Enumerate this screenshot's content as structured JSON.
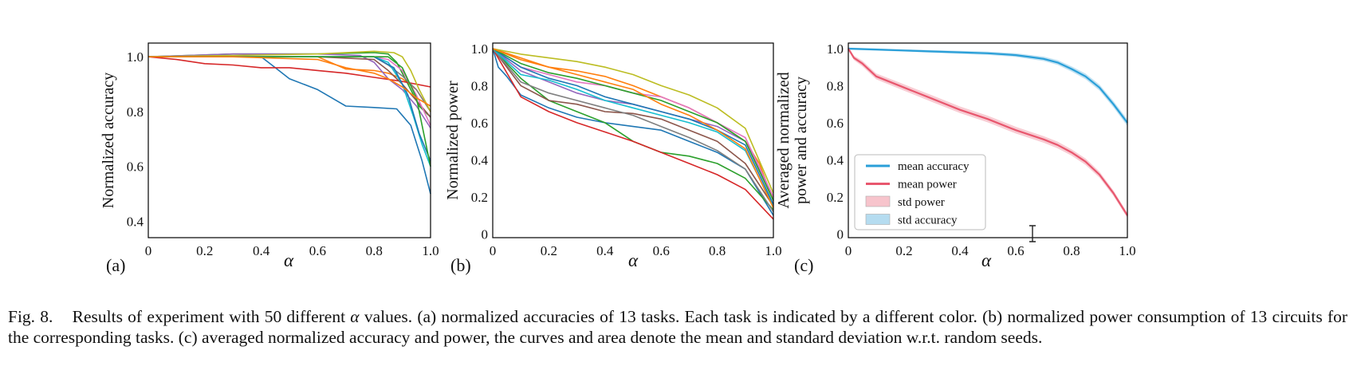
{
  "figure": {
    "caption_label": "Fig. 8.",
    "caption_lead": "Results of experiment with 50 different",
    "caption_symbol": "α",
    "caption_body": "values. (a) normalized accuracies of 13 tasks. Each task is indicated by a different color. (b) normalized power consumption of 13 circuits for the corresponding tasks. (c) averaged normalized accuracy and power, the curves and area denote the mean and standard deviation w.r.t. random seeds."
  },
  "colors": {
    "series": [
      "#1f77b4",
      "#ff7f0e",
      "#2ca02c",
      "#d62728",
      "#9467bd",
      "#8c564b",
      "#e377c2",
      "#7f7f7f",
      "#bcbd22",
      "#17becf",
      "#1f77b4",
      "#2ca02c",
      "#ff7f0e"
    ],
    "mean_accuracy": "#2a9fd8",
    "mean_power": "#e8576e",
    "std_power": "#f7c4cc",
    "std_accuracy": "#b5dcf0"
  },
  "chart_data": [
    {
      "panel_label": "(a)",
      "type": "line",
      "xlabel": "α",
      "ylabel": "Normalized accuracy",
      "xlim": [
        0,
        1
      ],
      "ylim": [
        0.34,
        1.05
      ],
      "xticks": [
        0,
        0.2,
        0.4,
        0.6,
        0.8,
        1.0
      ],
      "xtick_labels": [
        "0",
        "0.2",
        "0.4",
        "0.6",
        "0.8",
        "1.0"
      ],
      "yticks": [
        0.4,
        0.6,
        0.8,
        1.0
      ],
      "ytick_labels": [
        "0.4",
        "0.6",
        "0.8",
        "1.0"
      ],
      "grid": false,
      "series": [
        {
          "x": [
            0,
            0.3,
            0.4,
            0.45,
            0.5,
            0.6,
            0.7,
            0.8,
            0.88,
            0.93,
            0.97,
            1.0
          ],
          "y": [
            1.0,
            1.0,
            1.0,
            0.96,
            0.92,
            0.88,
            0.82,
            0.815,
            0.81,
            0.75,
            0.62,
            0.5
          ]
        },
        {
          "x": [
            0,
            0.3,
            0.5,
            0.6,
            0.7,
            0.8,
            0.85,
            0.9,
            0.95,
            1.0
          ],
          "y": [
            1.0,
            1.0,
            1.0,
            1.0,
            0.955,
            0.95,
            0.94,
            0.92,
            0.88,
            0.8
          ]
        },
        {
          "x": [
            0,
            0.3,
            0.6,
            0.8,
            0.85,
            0.88,
            0.92,
            0.96,
            1.0
          ],
          "y": [
            1.0,
            1.01,
            1.01,
            1.015,
            1.01,
            0.98,
            0.9,
            0.82,
            0.78
          ]
        },
        {
          "x": [
            0,
            0.1,
            0.2,
            0.3,
            0.4,
            0.5,
            0.6,
            0.7,
            0.8,
            0.9,
            1.0
          ],
          "y": [
            1.0,
            0.99,
            0.975,
            0.97,
            0.96,
            0.96,
            0.95,
            0.94,
            0.925,
            0.91,
            0.89
          ]
        },
        {
          "x": [
            0,
            0.3,
            0.6,
            0.75,
            0.8,
            0.85,
            0.9,
            0.95,
            1.0
          ],
          "y": [
            1.0,
            1.01,
            1.01,
            1.005,
            0.98,
            0.92,
            0.88,
            0.82,
            0.74
          ]
        },
        {
          "x": [
            0,
            0.3,
            0.6,
            0.8,
            0.85,
            0.9,
            0.95,
            1.0
          ],
          "y": [
            1.0,
            1.0,
            1.0,
            0.99,
            0.95,
            0.9,
            0.84,
            0.78
          ]
        },
        {
          "x": [
            0,
            0.3,
            0.6,
            0.8,
            0.85,
            0.9,
            0.95,
            1.0
          ],
          "y": [
            1.0,
            1.0,
            1.0,
            1.0,
            0.99,
            0.95,
            0.86,
            0.75
          ]
        },
        {
          "x": [
            0,
            0.3,
            0.6,
            0.8,
            0.85,
            0.9,
            0.95,
            1.0
          ],
          "y": [
            1.0,
            1.0,
            1.0,
            1.0,
            0.97,
            0.93,
            0.88,
            0.8
          ]
        },
        {
          "x": [
            0,
            0.3,
            0.6,
            0.8,
            0.87,
            0.9,
            0.93,
            0.96,
            1.0
          ],
          "y": [
            1.0,
            1.005,
            1.01,
            1.02,
            1.015,
            1.0,
            0.95,
            0.88,
            0.8
          ]
        },
        {
          "x": [
            0,
            0.3,
            0.6,
            0.8,
            0.85,
            0.9,
            0.94,
            0.97,
            1.0
          ],
          "y": [
            1.0,
            1.0,
            1.0,
            1.0,
            0.98,
            0.9,
            0.78,
            0.68,
            0.6
          ]
        },
        {
          "x": [
            0,
            0.3,
            0.6,
            0.8,
            0.87,
            0.92,
            0.96,
            1.0
          ],
          "y": [
            1.0,
            1.0,
            1.0,
            1.0,
            0.96,
            0.86,
            0.72,
            0.62
          ]
        },
        {
          "x": [
            0,
            0.3,
            0.6,
            0.85,
            0.9,
            0.95,
            0.98,
            1.0
          ],
          "y": [
            1.0,
            1.0,
            1.0,
            1.0,
            0.96,
            0.85,
            0.7,
            0.6
          ]
        },
        {
          "x": [
            0,
            0.3,
            0.6,
            0.7,
            0.8,
            0.85,
            0.9,
            0.95,
            1.0
          ],
          "y": [
            1.0,
            1.0,
            0.99,
            0.96,
            0.94,
            0.92,
            0.89,
            0.85,
            0.82
          ]
        }
      ]
    },
    {
      "panel_label": "(b)",
      "type": "line",
      "xlabel": "α",
      "ylabel": "Normalized power",
      "xlim": [
        0,
        1
      ],
      "ylim": [
        -0.02,
        1.03
      ],
      "xticks": [
        0,
        0.2,
        0.4,
        0.6,
        0.8,
        1.0
      ],
      "xtick_labels": [
        "0",
        "0.2",
        "0.4",
        "0.6",
        "0.8",
        "1.0"
      ],
      "yticks": [
        0,
        0.2,
        0.4,
        0.6,
        0.8,
        1.0
      ],
      "ytick_labels": [
        "0",
        "0.2",
        "0.4",
        "0.6",
        "0.8",
        "1.0"
      ],
      "grid": false,
      "series": [
        {
          "x": [
            0,
            0.02,
            0.05,
            0.1,
            0.2,
            0.3,
            0.4,
            0.5,
            0.6,
            0.7,
            0.8,
            0.9,
            1.0
          ],
          "y": [
            1.0,
            0.9,
            0.85,
            0.75,
            0.68,
            0.63,
            0.6,
            0.58,
            0.56,
            0.5,
            0.44,
            0.35,
            0.1
          ]
        },
        {
          "x": [
            0,
            0.1,
            0.2,
            0.3,
            0.4,
            0.5,
            0.6,
            0.7,
            0.8,
            0.85,
            0.9,
            0.95,
            1.0
          ],
          "y": [
            1.0,
            0.95,
            0.9,
            0.88,
            0.85,
            0.8,
            0.74,
            0.68,
            0.6,
            0.55,
            0.5,
            0.38,
            0.18
          ]
        },
        {
          "x": [
            0,
            0.1,
            0.2,
            0.3,
            0.4,
            0.5,
            0.6,
            0.7,
            0.8,
            0.9,
            1.0
          ],
          "y": [
            1.0,
            0.84,
            0.72,
            0.66,
            0.6,
            0.5,
            0.44,
            0.42,
            0.38,
            0.3,
            0.13
          ]
        },
        {
          "x": [
            0,
            0.1,
            0.2,
            0.3,
            0.4,
            0.5,
            0.6,
            0.7,
            0.8,
            0.9,
            1.0
          ],
          "y": [
            1.0,
            0.74,
            0.66,
            0.6,
            0.55,
            0.5,
            0.44,
            0.38,
            0.32,
            0.24,
            0.08
          ]
        },
        {
          "x": [
            0,
            0.1,
            0.2,
            0.3,
            0.4,
            0.5,
            0.6,
            0.7,
            0.8,
            0.9,
            1.0
          ],
          "y": [
            1.0,
            0.88,
            0.82,
            0.76,
            0.72,
            0.7,
            0.66,
            0.62,
            0.58,
            0.5,
            0.2
          ]
        },
        {
          "x": [
            0,
            0.1,
            0.2,
            0.3,
            0.4,
            0.5,
            0.6,
            0.7,
            0.8,
            0.9,
            1.0
          ],
          "y": [
            1.0,
            0.8,
            0.72,
            0.7,
            0.66,
            0.65,
            0.62,
            0.56,
            0.5,
            0.38,
            0.15
          ]
        },
        {
          "x": [
            0,
            0.1,
            0.2,
            0.3,
            0.4,
            0.5,
            0.6,
            0.7,
            0.8,
            0.9,
            1.0
          ],
          "y": [
            1.0,
            0.9,
            0.86,
            0.82,
            0.8,
            0.76,
            0.74,
            0.68,
            0.6,
            0.52,
            0.2
          ]
        },
        {
          "x": [
            0,
            0.1,
            0.2,
            0.3,
            0.4,
            0.5,
            0.6,
            0.7,
            0.8,
            0.9,
            1.0
          ],
          "y": [
            1.0,
            0.82,
            0.76,
            0.72,
            0.68,
            0.64,
            0.58,
            0.52,
            0.45,
            0.35,
            0.12
          ]
        },
        {
          "x": [
            0,
            0.1,
            0.2,
            0.3,
            0.4,
            0.5,
            0.6,
            0.7,
            0.8,
            0.9,
            1.0
          ],
          "y": [
            1.0,
            0.97,
            0.95,
            0.93,
            0.9,
            0.86,
            0.8,
            0.75,
            0.68,
            0.57,
            0.22
          ]
        },
        {
          "x": [
            0,
            0.1,
            0.2,
            0.3,
            0.4,
            0.5,
            0.6,
            0.7,
            0.8,
            0.9,
            1.0
          ],
          "y": [
            1.0,
            0.86,
            0.83,
            0.78,
            0.72,
            0.68,
            0.64,
            0.6,
            0.55,
            0.45,
            0.15
          ]
        },
        {
          "x": [
            0,
            0.1,
            0.2,
            0.3,
            0.4,
            0.5,
            0.6,
            0.7,
            0.8,
            0.9,
            1.0
          ],
          "y": [
            1.0,
            0.9,
            0.84,
            0.8,
            0.74,
            0.7,
            0.66,
            0.62,
            0.56,
            0.48,
            0.16
          ]
        },
        {
          "x": [
            0,
            0.1,
            0.2,
            0.3,
            0.4,
            0.5,
            0.6,
            0.7,
            0.8,
            0.9,
            1.0
          ],
          "y": [
            1.0,
            0.92,
            0.87,
            0.84,
            0.8,
            0.76,
            0.72,
            0.66,
            0.6,
            0.5,
            0.18
          ]
        },
        {
          "x": [
            0,
            0.1,
            0.2,
            0.3,
            0.4,
            0.5,
            0.6,
            0.7,
            0.8,
            0.9,
            1.0
          ],
          "y": [
            1.0,
            0.94,
            0.9,
            0.86,
            0.82,
            0.78,
            0.7,
            0.64,
            0.56,
            0.46,
            0.14
          ]
        }
      ]
    },
    {
      "panel_label": "(c)",
      "type": "line",
      "xlabel": "α",
      "ylabel": [
        "Averaged normalized",
        "power and accuracy"
      ],
      "xlim": [
        0,
        1
      ],
      "ylim": [
        -0.02,
        1.03
      ],
      "xticks": [
        0,
        0.2,
        0.4,
        0.6,
        0.8,
        1.0
      ],
      "xtick_labels": [
        "0",
        "0.2",
        "0.4",
        "0.6",
        "0.8",
        "1.0"
      ],
      "yticks": [
        0,
        0.2,
        0.4,
        0.6,
        0.8,
        1.0
      ],
      "ytick_labels": [
        "0",
        "0.2",
        "0.4",
        "0.6",
        "0.8",
        "1.0"
      ],
      "grid": false,
      "legend_position": "lower-left",
      "legend": [
        "mean accuracy",
        "mean power",
        "std power",
        "std accuracy"
      ],
      "series": [
        {
          "name": "mean accuracy",
          "x": [
            0,
            0.1,
            0.2,
            0.3,
            0.4,
            0.5,
            0.6,
            0.65,
            0.7,
            0.75,
            0.8,
            0.85,
            0.9,
            0.95,
            1.0
          ],
          "y": [
            1.0,
            0.995,
            0.99,
            0.985,
            0.98,
            0.975,
            0.965,
            0.955,
            0.945,
            0.925,
            0.89,
            0.85,
            0.79,
            0.7,
            0.6
          ],
          "std": [
            0.006,
            0.006,
            0.006,
            0.007,
            0.008,
            0.009,
            0.01,
            0.011,
            0.012,
            0.013,
            0.014,
            0.015,
            0.016,
            0.017,
            0.018
          ]
        },
        {
          "name": "mean power",
          "x": [
            0,
            0.02,
            0.05,
            0.1,
            0.2,
            0.3,
            0.4,
            0.5,
            0.6,
            0.7,
            0.75,
            0.8,
            0.85,
            0.9,
            0.95,
            1.0
          ],
          "y": [
            1.0,
            0.95,
            0.92,
            0.85,
            0.79,
            0.73,
            0.67,
            0.62,
            0.56,
            0.51,
            0.48,
            0.44,
            0.39,
            0.32,
            0.22,
            0.1
          ],
          "std": [
            0.005,
            0.012,
            0.015,
            0.016,
            0.017,
            0.018,
            0.018,
            0.018,
            0.018,
            0.018,
            0.018,
            0.017,
            0.017,
            0.016,
            0.015,
            0.014
          ]
        }
      ]
    }
  ]
}
